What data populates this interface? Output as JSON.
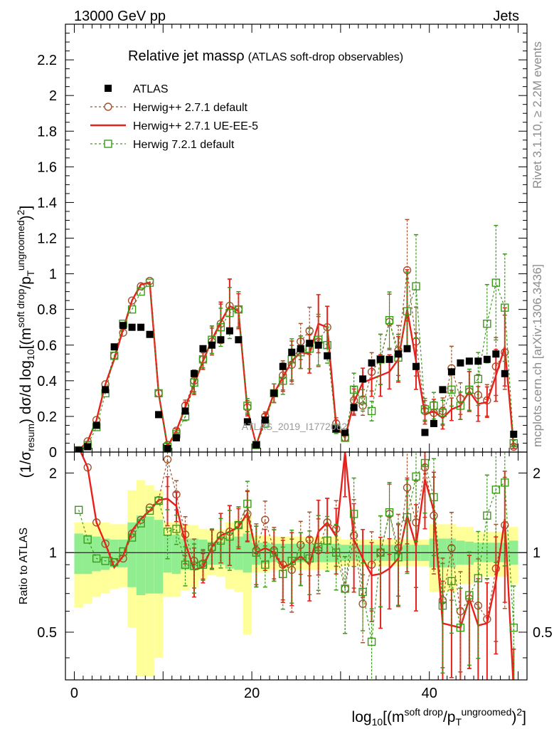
{
  "header": {
    "left_label": "13000 GeV pp",
    "right_label": "Jets",
    "title_main": "Relative jet massρ",
    "title_sub": "(ATLAS soft-drop observables)"
  },
  "side_labels": {
    "rivet": "Rivet 3.1.10, ≥ 2.2M events",
    "mcplots": "mcplots.cern.ch [arXiv:1306.3436]"
  },
  "watermark": "ATLAS_2019_I1772062",
  "colors": {
    "data": "#000000",
    "herwig_default": "#a0522d",
    "herwig_ue": "#e8201b",
    "herwig7": "#3a9a1a",
    "band_inner": "#90ee90",
    "band_outer": "#ffff99"
  },
  "chart_data": [
    {
      "type": "scatter",
      "title": "Relative jet massρ (ATLAS soft-drop observables)",
      "ylabel": "(1/σresum) dσ/d log10[(m^soft drop/pT^ungroomed)^2]",
      "xlim": [
        -1,
        51
      ],
      "ylim": [
        0,
        2.4
      ],
      "yticks": [
        "0",
        "0.2",
        "0.4",
        "0.6",
        "0.8",
        "1",
        "1.2",
        "1.4",
        "1.6",
        "1.8",
        "2",
        "2.2"
      ],
      "x": [
        0.5,
        1.5,
        2.5,
        3.5,
        4.5,
        5.5,
        6.5,
        7.5,
        8.5,
        9.5,
        10.5,
        11.5,
        12.5,
        13.5,
        14.5,
        15.5,
        16.5,
        17.5,
        18.5,
        19.5,
        20.5,
        21.5,
        22.5,
        23.5,
        24.5,
        25.5,
        26.5,
        27.5,
        28.5,
        29.5,
        30.5,
        31.5,
        32.5,
        33.5,
        34.5,
        35.5,
        36.5,
        37.5,
        38.5,
        39.5,
        40.5,
        41.5,
        42.5,
        43.5,
        44.5,
        45.5,
        46.5,
        47.5,
        48.5,
        49.5
      ],
      "legend": [
        "ATLAS",
        "Herwig++ 2.7.1 default",
        "Herwig++ 2.7.1 UE-EE-5",
        "Herwig 7.2.1 default"
      ],
      "series": [
        {
          "name": "ATLAS",
          "style": "square-marker",
          "values": [
            0.01,
            0.03,
            0.15,
            0.35,
            0.59,
            0.71,
            0.7,
            0.7,
            0.66,
            0.21,
            0.02,
            0.08,
            0.23,
            0.44,
            0.58,
            0.6,
            0.63,
            0.68,
            0.63,
            0.17,
            0.04,
            0.18,
            0.33,
            0.48,
            0.56,
            0.58,
            0.61,
            0.6,
            0.54,
            0.13,
            0.11,
            0.25,
            0.41,
            0.5,
            0.52,
            0.52,
            0.55,
            0.58,
            0.48,
            0.11,
            0.16,
            0.35,
            0.45,
            0.5,
            0.51,
            0.51,
            0.52,
            0.55,
            0.44,
            0.1
          ]
        },
        {
          "name": "Herwig++ 2.7.1 default",
          "style": "dashed-open-circle",
          "values": [
            0.01,
            0.06,
            0.18,
            0.38,
            0.54,
            0.67,
            0.85,
            0.93,
            0.96,
            0.33,
            0.04,
            0.12,
            0.26,
            0.4,
            0.52,
            0.62,
            0.72,
            0.82,
            0.8,
            0.25,
            0.04,
            0.2,
            0.33,
            0.43,
            0.49,
            0.62,
            0.68,
            0.62,
            0.7,
            0.16,
            0.08,
            0.29,
            0.26,
            0.45,
            0.52,
            0.73,
            0.57,
            1.02,
            0.62,
            0.23,
            0.22,
            0.23,
            0.47,
            0.3,
            0.34,
            0.32,
            0.29,
            0.48,
            0.56,
            0.03
          ]
        },
        {
          "name": "Herwig++ 2.7.1 UE-EE-5",
          "style": "solid-line",
          "values": [
            0.01,
            0.06,
            0.18,
            0.38,
            0.52,
            0.69,
            0.85,
            0.94,
            0.95,
            0.33,
            0.03,
            0.12,
            0.25,
            0.38,
            0.51,
            0.63,
            0.73,
            0.82,
            0.79,
            0.24,
            0.04,
            0.19,
            0.33,
            0.42,
            0.51,
            0.56,
            0.55,
            0.72,
            0.7,
            0.15,
            0.08,
            0.28,
            0.39,
            0.41,
            0.43,
            0.45,
            0.52,
            0.8,
            0.51,
            0.21,
            0.23,
            0.19,
            0.24,
            0.26,
            0.34,
            0.27,
            0.28,
            0.43,
            0.59,
            0.03
          ]
        },
        {
          "name": "Herwig 7.2.1 default",
          "style": "dashed-open-square",
          "values": [
            0.01,
            0.04,
            0.14,
            0.33,
            0.54,
            0.72,
            0.8,
            0.9,
            0.95,
            0.33,
            0.03,
            0.1,
            0.2,
            0.39,
            0.52,
            0.63,
            0.7,
            0.78,
            0.8,
            0.26,
            0.04,
            0.16,
            0.33,
            0.4,
            0.52,
            0.56,
            0.58,
            0.63,
            0.6,
            0.13,
            0.08,
            0.35,
            0.29,
            0.23,
            0.52,
            0.74,
            0.53,
            0.79,
            0.93,
            0.24,
            0.26,
            0.22,
            0.35,
            0.26,
            0.35,
            0.41,
            0.72,
            0.95,
            0.81,
            0.05
          ]
        }
      ]
    },
    {
      "type": "line",
      "ylabel": "Ratio to ATLAS",
      "xlabel": "log10[(m^soft drop/pT^ungroomed)^2]",
      "xlim": [
        -1,
        51
      ],
      "ylim": [
        0.33,
        2.4
      ],
      "xticks": [
        "0",
        "20",
        "40"
      ],
      "yticks": [
        "0.5",
        "1",
        "2"
      ],
      "x": [
        0.5,
        1.5,
        2.5,
        3.5,
        4.5,
        5.5,
        6.5,
        7.5,
        8.5,
        9.5,
        10.5,
        11.5,
        12.5,
        13.5,
        14.5,
        15.5,
        16.5,
        17.5,
        18.5,
        19.5,
        20.5,
        21.5,
        22.5,
        23.5,
        24.5,
        25.5,
        26.5,
        27.5,
        28.5,
        29.5,
        30.5,
        31.5,
        32.5,
        33.5,
        34.5,
        35.5,
        36.5,
        37.5,
        38.5,
        39.5,
        40.5,
        41.5,
        42.5,
        43.5,
        44.5,
        45.5,
        46.5,
        47.5,
        48.5,
        49.5
      ],
      "band_inner": {
        "lo": [
          0.83,
          0.83,
          0.85,
          0.86,
          0.88,
          0.88,
          0.74,
          0.69,
          0.7,
          0.7,
          0.84,
          0.83,
          0.86,
          0.86,
          0.88,
          0.9,
          0.9,
          0.87,
          0.86,
          0.84,
          0.9,
          0.91,
          0.92,
          0.92,
          0.92,
          0.92,
          0.92,
          0.92,
          0.92,
          0.92,
          0.93,
          0.93,
          0.93,
          0.93,
          0.93,
          0.93,
          0.93,
          0.93,
          0.93,
          0.93,
          0.88,
          0.88,
          0.88,
          0.9,
          0.9,
          0.92,
          0.92,
          0.92,
          0.92,
          0.9
        ],
        "hi": [
          1.18,
          1.17,
          1.15,
          1.13,
          1.12,
          1.12,
          1.3,
          1.38,
          1.37,
          1.33,
          1.17,
          1.17,
          1.13,
          1.13,
          1.12,
          1.1,
          1.1,
          1.14,
          1.15,
          1.18,
          1.09,
          1.09,
          1.08,
          1.08,
          1.08,
          1.08,
          1.08,
          1.08,
          1.08,
          1.08,
          1.07,
          1.07,
          1.07,
          1.07,
          1.07,
          1.07,
          1.07,
          1.07,
          1.07,
          1.07,
          1.13,
          1.13,
          1.13,
          1.11,
          1.1,
          1.09,
          1.09,
          1.09,
          1.09,
          1.11
        ]
      },
      "band_outer": {
        "lo": [
          0.62,
          0.64,
          0.68,
          0.7,
          0.73,
          0.74,
          0.52,
          0.34,
          0.34,
          0.4,
          0.68,
          0.68,
          0.72,
          0.74,
          0.79,
          0.82,
          0.81,
          0.73,
          0.71,
          0.49,
          0.84,
          0.84,
          0.86,
          0.86,
          0.86,
          0.86,
          0.86,
          0.86,
          0.86,
          0.86,
          0.89,
          0.89,
          0.89,
          0.89,
          0.89,
          0.89,
          0.89,
          0.89,
          0.89,
          0.89,
          0.71,
          0.71,
          0.71,
          0.76,
          0.76,
          0.81,
          0.81,
          0.81,
          0.81,
          0.76
        ],
        "hi": [
          1.3,
          1.3,
          1.3,
          1.3,
          1.28,
          1.28,
          1.72,
          1.88,
          1.8,
          1.72,
          1.3,
          1.3,
          1.28,
          1.27,
          1.23,
          1.22,
          1.22,
          1.3,
          1.33,
          1.38,
          1.16,
          1.16,
          1.15,
          1.15,
          1.15,
          1.15,
          1.15,
          1.15,
          1.15,
          1.15,
          1.12,
          1.12,
          1.12,
          1.12,
          1.12,
          1.12,
          1.12,
          1.12,
          1.12,
          1.12,
          1.28,
          1.28,
          1.28,
          1.25,
          1.25,
          1.2,
          1.2,
          1.2,
          1.2,
          1.25
        ]
      },
      "series": [
        {
          "name": "Herwig++ 2.7.1 default",
          "values": [
            2.5,
            2.1,
            1.3,
            1.08,
            0.92,
            0.95,
            1.18,
            1.33,
            1.48,
            1.58,
            2.25,
            1.66,
            1.17,
            0.93,
            0.91,
            1.04,
            1.16,
            1.2,
            1.27,
            1.4,
            1.02,
            1.33,
            1.02,
            0.9,
            0.86,
            1.07,
            1.12,
            1.02,
            1.3,
            1.23,
            0.73,
            1.16,
            0.64,
            0.9,
            1.0,
            1.4,
            1.04,
            1.76,
            1.3,
            2.1,
            1.38,
            0.66,
            1.04,
            0.6,
            0.67,
            0.63,
            0.56,
            0.87,
            1.27,
            0.3
          ]
        },
        {
          "name": "Herwig++ 2.7.1 UE-EE-5",
          "values": [
            2.5,
            2.1,
            1.3,
            1.08,
            0.88,
            0.97,
            1.21,
            1.34,
            1.44,
            1.58,
            1.6,
            1.5,
            1.09,
            0.86,
            0.88,
            1.05,
            1.16,
            1.2,
            1.25,
            1.41,
            1.0,
            1.04,
            1.0,
            0.88,
            0.91,
            0.97,
            0.9,
            1.2,
            1.3,
            1.15,
            2.4,
            1.12,
            0.95,
            0.82,
            0.83,
            0.87,
            0.95,
            1.38,
            1.06,
            1.9,
            1.44,
            0.54,
            0.53,
            0.52,
            0.67,
            0.53,
            0.54,
            0.78,
            1.34,
            0.3
          ]
        },
        {
          "name": "Herwig 7.2.1 default",
          "values": [
            1.45,
            1.12,
            0.95,
            0.93,
            0.92,
            1.01,
            1.14,
            1.29,
            1.44,
            1.57,
            1.2,
            1.23,
            0.9,
            0.89,
            0.9,
            1.05,
            1.11,
            1.15,
            1.27,
            1.53,
            1.0,
            0.9,
            1.0,
            0.83,
            0.93,
            0.97,
            0.95,
            1.05,
            1.11,
            1.0,
            0.73,
            1.4,
            0.71,
            0.46,
            1.0,
            1.42,
            0.96,
            1.36,
            1.94,
            2.18,
            1.62,
            0.63,
            0.78,
            0.52,
            0.69,
            0.8,
            1.38,
            1.73,
            1.84,
            0.52
          ]
        }
      ]
    }
  ]
}
